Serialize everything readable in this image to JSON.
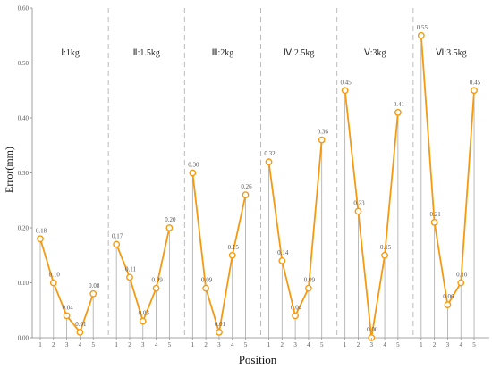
{
  "chart_data": {
    "type": "line",
    "xlabel": "Position",
    "ylabel": "Error(mm)",
    "ylim": [
      0.0,
      0.6
    ],
    "yticks": [
      "0.00",
      "0.10",
      "0.20",
      "0.30",
      "0.40",
      "0.50",
      "0.60"
    ],
    "positions": [
      "1",
      "2",
      "3",
      "4",
      "5"
    ],
    "line_color": "#f59a10",
    "marker_fill": "#ffffff",
    "stem_color": "#aaaaaa",
    "divider_color": "#bbbbbb",
    "grid": false,
    "groups": [
      {
        "name": "Ⅰ:1kg",
        "values": [
          0.18,
          0.1,
          0.04,
          0.01,
          0.08
        ],
        "labels": [
          "0.18",
          "0.10",
          "0.04",
          "0.01",
          "0.08"
        ]
      },
      {
        "name": "Ⅱ:1.5kg",
        "values": [
          0.17,
          0.11,
          0.03,
          0.09,
          0.2
        ],
        "labels": [
          "0.17",
          "0.11",
          "0.03",
          "0.09",
          "0.20"
        ]
      },
      {
        "name": "Ⅲ:2kg",
        "values": [
          0.3,
          0.09,
          0.01,
          0.15,
          0.26
        ],
        "labels": [
          "0.30",
          "0.09",
          "0.01",
          "0.15",
          "0.26"
        ]
      },
      {
        "name": "Ⅳ:2.5kg",
        "values": [
          0.32,
          0.14,
          0.04,
          0.09,
          0.36
        ],
        "labels": [
          "0.32",
          "0.14",
          "0.04",
          "0.09",
          "0.36"
        ]
      },
      {
        "name": "Ⅴ:3kg",
        "values": [
          0.45,
          0.23,
          0.0,
          0.15,
          0.41
        ],
        "labels": [
          "0.45",
          "0.23",
          "0.00",
          "0.15",
          "0.41"
        ]
      },
      {
        "name": "Ⅵ:3.5kg",
        "values": [
          0.55,
          0.21,
          0.06,
          0.1,
          0.45
        ],
        "labels": [
          "0.55",
          "0.21",
          "0.06",
          "0.10",
          "0.45"
        ]
      }
    ]
  }
}
